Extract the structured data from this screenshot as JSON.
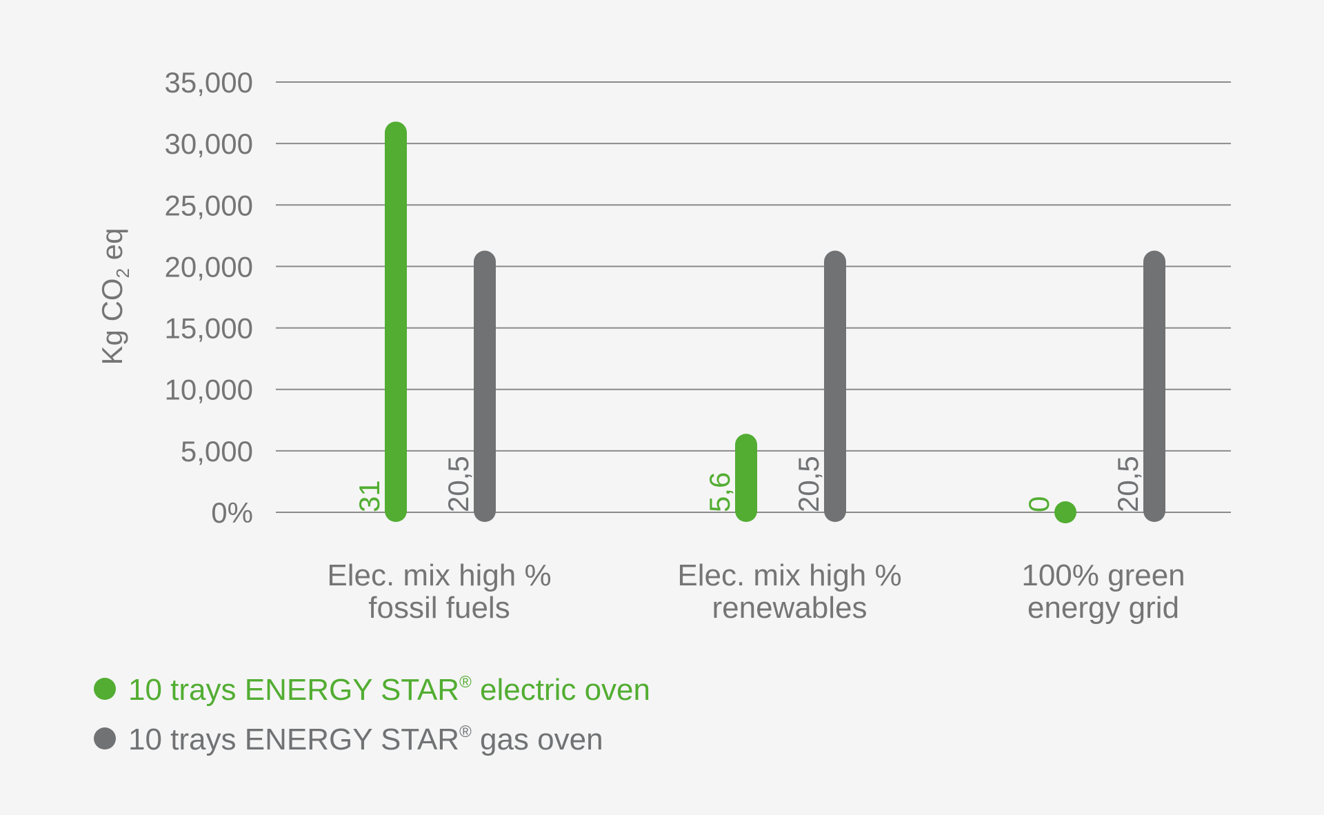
{
  "chart_data": {
    "type": "bar",
    "title": "",
    "xlabel": "",
    "ylabel": {
      "main": "Kg CO",
      "sub": "2",
      "tail": " eq"
    },
    "ylim": [
      0,
      35000
    ],
    "yticks": [
      0,
      5000,
      10000,
      15000,
      20000,
      25000,
      30000,
      35000
    ],
    "ytick_labels": [
      "0%",
      "5,000",
      "10,000",
      "15,000",
      "20,000",
      "25,000",
      "30,000",
      "35,000"
    ],
    "grid": true,
    "categories": [
      [
        "Elec. mix high %",
        "fossil fuels"
      ],
      [
        "Elec. mix high %",
        "renewables"
      ],
      [
        "100% green",
        "energy grid"
      ]
    ],
    "series": [
      {
        "name": "10 trays ENERGY STAR® electric oven",
        "legend_main": "10 trays ENERGY STAR",
        "legend_sup": "®",
        "legend_tail": " electric oven",
        "color": "#52ad32",
        "values": [
          31000,
          5600,
          0
        ],
        "labels": [
          "31",
          "5,6",
          "0"
        ]
      },
      {
        "name": "10 trays ENERGY STAR® gas oven",
        "legend_main": "10 trays ENERGY STAR",
        "legend_sup": "®",
        "legend_tail": " gas oven",
        "color": "#707274",
        "values": [
          20500,
          20500,
          20500
        ],
        "labels": [
          "20,5",
          "20,5",
          "20,5"
        ]
      }
    ],
    "legend_position": "bottom-left"
  }
}
